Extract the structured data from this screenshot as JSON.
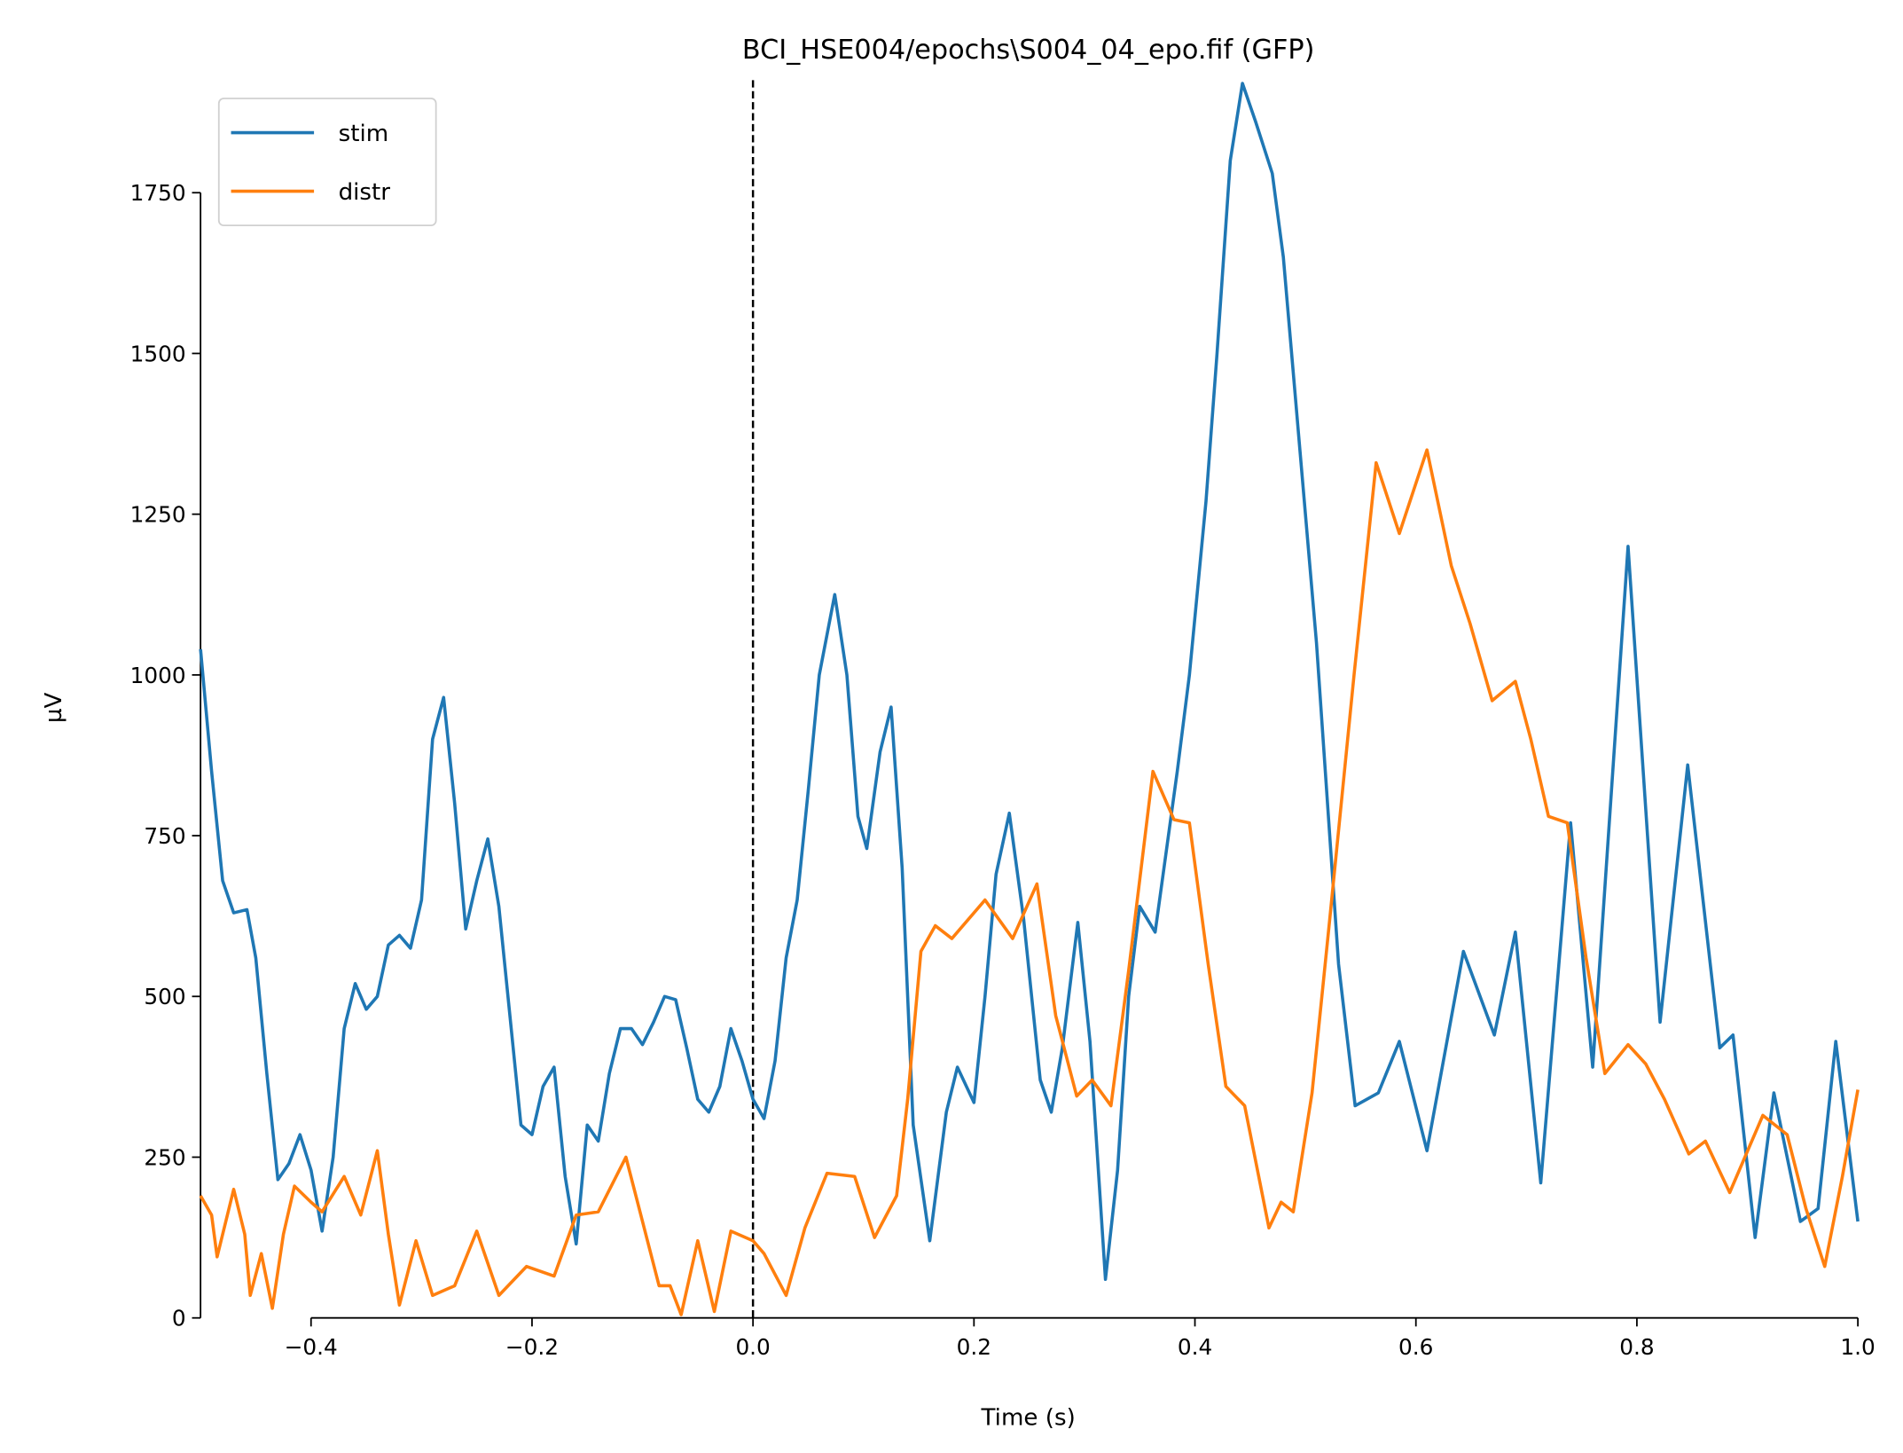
{
  "chart_data": {
    "type": "line",
    "title": "BCI_HSE004/epochs\\S004_04_epo.fif (GFP)",
    "x_label": "Time (s)",
    "y_label": "µV",
    "xlim": [
      -0.5,
      1.0
    ],
    "ylim": [
      0,
      1925
    ],
    "xticks": [
      {
        "value": -0.4,
        "label": "−0.4"
      },
      {
        "value": -0.2,
        "label": "−0.2"
      },
      {
        "value": 0.0,
        "label": "0.0"
      },
      0.2,
      0.4,
      0.6,
      0.8,
      {
        "value": 1.0,
        "label": "1.0"
      }
    ],
    "yticks": [
      0,
      250,
      500,
      750,
      1000,
      1250,
      1500,
      1750
    ],
    "legend": "upper left",
    "series": [
      {
        "name": "stim",
        "color": "#1f77b4",
        "x": [
          -0.5,
          -0.49,
          -0.48,
          -0.47,
          -0.458,
          -0.45,
          -0.44,
          -0.43,
          -0.42,
          -0.41,
          -0.4,
          -0.39,
          -0.38,
          -0.37,
          -0.36,
          -0.35,
          -0.34,
          -0.33,
          -0.32,
          -0.31,
          -0.3,
          -0.29,
          -0.28,
          -0.27,
          -0.26,
          -0.25,
          -0.24,
          -0.23,
          -0.22,
          -0.21,
          -0.2,
          -0.19,
          -0.18,
          -0.17,
          -0.16,
          -0.15,
          -0.14,
          -0.13,
          -0.12,
          -0.11,
          -0.1,
          -0.09,
          -0.08,
          -0.07,
          -0.06,
          -0.05,
          -0.04,
          -0.03,
          -0.02,
          -0.01,
          0.0,
          0.01,
          0.02,
          0.03,
          0.04,
          0.05,
          0.06,
          0.074,
          0.085,
          0.095,
          0.103,
          0.115,
          0.125,
          0.135,
          0.145,
          0.16,
          0.175,
          0.185,
          0.2,
          0.21,
          0.22,
          0.232,
          0.245,
          0.26,
          0.27,
          0.28,
          0.294,
          0.305,
          0.319,
          0.33,
          0.34,
          0.35,
          0.364,
          0.384,
          0.395,
          0.41,
          0.42,
          0.432,
          0.443,
          0.455,
          0.47,
          0.48,
          0.49,
          0.5,
          0.51,
          0.52,
          0.53,
          0.545,
          0.566,
          0.585,
          0.61,
          0.643,
          0.671,
          0.69,
          0.713,
          0.74,
          0.76,
          0.792,
          0.821,
          0.846,
          0.875,
          0.887,
          0.907,
          0.924,
          0.948,
          0.964,
          0.98,
          1.0
        ],
        "values": [
          1040,
          850,
          680,
          630,
          635,
          560,
          380,
          215,
          240,
          285,
          230,
          135,
          250,
          450,
          520,
          480,
          500,
          580,
          595,
          575,
          650,
          900,
          965,
          800,
          605,
          680,
          745,
          640,
          470,
          300,
          285,
          360,
          390,
          220,
          115,
          300,
          275,
          380,
          450,
          450,
          425,
          460,
          500,
          495,
          420,
          340,
          320,
          360,
          450,
          400,
          340,
          310,
          400,
          560,
          650,
          820,
          1000,
          1125,
          1000,
          780,
          730,
          880,
          950,
          700,
          300,
          120,
          320,
          390,
          335,
          500,
          690,
          785,
          620,
          370,
          320,
          420,
          615,
          430,
          60,
          230,
          500,
          640,
          600,
          850,
          1000,
          1270,
          1500,
          1800,
          1920,
          1860,
          1780,
          1650,
          1450,
          1250,
          1050,
          800,
          550,
          330,
          350,
          430,
          260,
          570,
          440,
          600,
          210,
          770,
          390,
          1200,
          460,
          860,
          420,
          440,
          125,
          350,
          150,
          170,
          430,
          150
        ]
      },
      {
        "name": "distr",
        "color": "#ff7f0e",
        "x": [
          -0.5,
          -0.49,
          -0.485,
          -0.47,
          -0.46,
          -0.455,
          -0.445,
          -0.435,
          -0.425,
          -0.415,
          -0.4,
          -0.39,
          -0.37,
          -0.355,
          -0.34,
          -0.33,
          -0.32,
          -0.305,
          -0.29,
          -0.27,
          -0.25,
          -0.23,
          -0.205,
          -0.18,
          -0.16,
          -0.14,
          -0.115,
          -0.1,
          -0.085,
          -0.075,
          -0.065,
          -0.05,
          -0.035,
          -0.02,
          0.0,
          0.01,
          0.03,
          0.047,
          0.067,
          0.092,
          0.11,
          0.13,
          0.14,
          0.152,
          0.165,
          0.18,
          0.21,
          0.235,
          0.257,
          0.274,
          0.293,
          0.307,
          0.324,
          0.34,
          0.362,
          0.381,
          0.395,
          0.412,
          0.428,
          0.445,
          0.467,
          0.478,
          0.489,
          0.506,
          0.522,
          0.544,
          0.564,
          0.585,
          0.61,
          0.632,
          0.649,
          0.669,
          0.69,
          0.704,
          0.72,
          0.737,
          0.754,
          0.771,
          0.792,
          0.808,
          0.825,
          0.847,
          0.862,
          0.884,
          0.914,
          0.936,
          0.953,
          0.97,
          0.986,
          1.0
        ],
        "values": [
          190,
          160,
          95,
          200,
          130,
          35,
          100,
          15,
          130,
          205,
          180,
          165,
          220,
          160,
          260,
          130,
          20,
          120,
          35,
          50,
          135,
          35,
          80,
          65,
          160,
          165,
          250,
          150,
          50,
          50,
          5,
          120,
          10,
          135,
          120,
          100,
          35,
          140,
          225,
          220,
          125,
          190,
          340,
          570,
          610,
          590,
          650,
          590,
          675,
          470,
          345,
          370,
          330,
          540,
          850,
          775,
          770,
          550,
          360,
          330,
          140,
          180,
          165,
          350,
          620,
          1000,
          1330,
          1220,
          1350,
          1170,
          1080,
          960,
          990,
          900,
          780,
          770,
          560,
          380,
          425,
          395,
          340,
          255,
          275,
          195,
          315,
          285,
          170,
          80,
          220,
          355
        ]
      }
    ]
  }
}
